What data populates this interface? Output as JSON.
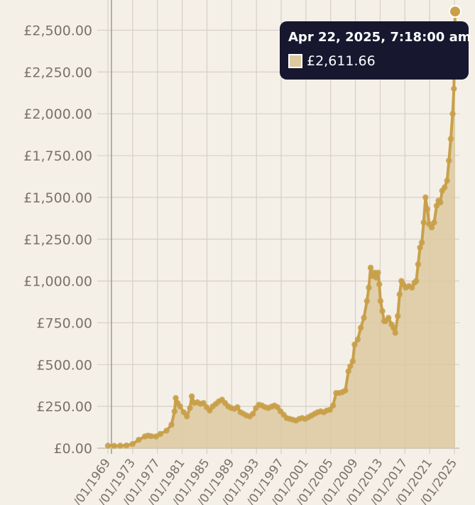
{
  "chart_data": {
    "type": "area",
    "y_tick_labels": [
      "£0.00",
      "£250.00",
      "£500.00",
      "£750.00",
      "£1,000.00",
      "£1,250.00",
      "£1,500.00",
      "£1,750.00",
      "£2,000.00",
      "£2,250.00",
      "£2,500.00"
    ],
    "ylim": [
      0,
      2611.66
    ],
    "x_tick_labels": [
      "/01/1969",
      "/01/1973",
      "/01/1977",
      "/01/1981",
      "/01/1985",
      "/01/1989",
      "/01/1993",
      "/01/1997",
      "/01/2001",
      "/01/2005",
      "/01/2009",
      "/01/2013",
      "/01/2017",
      "/01/2021",
      "/01/2025"
    ],
    "xlim": [
      1969,
      2025.3
    ],
    "grid": true,
    "colors": {
      "line": "#c9a04a",
      "fill": "#dcc99f",
      "tooltip_bg": "#171730",
      "swatch": "#dcc99f"
    },
    "series": [
      {
        "points": [
          [
            1969.0,
            15
          ],
          [
            1970.0,
            14
          ],
          [
            1971.0,
            15
          ],
          [
            1972.0,
            16
          ],
          [
            1973.0,
            25
          ],
          [
            1974.0,
            50
          ],
          [
            1975.0,
            70
          ],
          [
            1975.5,
            75
          ],
          [
            1976.0,
            72
          ],
          [
            1976.8,
            70
          ],
          [
            1977.5,
            85
          ],
          [
            1978.5,
            105
          ],
          [
            1979.3,
            140
          ],
          [
            1979.8,
            220
          ],
          [
            1980.0,
            300
          ],
          [
            1980.3,
            270
          ],
          [
            1980.7,
            250
          ],
          [
            1981.3,
            215
          ],
          [
            1981.8,
            190
          ],
          [
            1982.3,
            240
          ],
          [
            1982.6,
            310
          ],
          [
            1983.0,
            270
          ],
          [
            1983.5,
            275
          ],
          [
            1984.0,
            265
          ],
          [
            1984.5,
            270
          ],
          [
            1985.0,
            245
          ],
          [
            1985.5,
            225
          ],
          [
            1986.0,
            250
          ],
          [
            1986.5,
            265
          ],
          [
            1987.0,
            280
          ],
          [
            1987.5,
            290
          ],
          [
            1988.0,
            270
          ],
          [
            1988.5,
            250
          ],
          [
            1989.0,
            240
          ],
          [
            1989.5,
            235
          ],
          [
            1990.0,
            245
          ],
          [
            1990.5,
            215
          ],
          [
            1991.0,
            205
          ],
          [
            1991.5,
            195
          ],
          [
            1992.0,
            190
          ],
          [
            1992.5,
            205
          ],
          [
            1993.0,
            240
          ],
          [
            1993.5,
            260
          ],
          [
            1994.0,
            255
          ],
          [
            1994.5,
            245
          ],
          [
            1995.0,
            240
          ],
          [
            1995.5,
            248
          ],
          [
            1996.0,
            255
          ],
          [
            1996.5,
            245
          ],
          [
            1997.0,
            220
          ],
          [
            1997.5,
            200
          ],
          [
            1998.0,
            180
          ],
          [
            1998.5,
            175
          ],
          [
            1999.0,
            170
          ],
          [
            1999.5,
            165
          ],
          [
            2000.0,
            175
          ],
          [
            2000.5,
            180
          ],
          [
            2001.0,
            175
          ],
          [
            2001.5,
            185
          ],
          [
            2002.0,
            195
          ],
          [
            2002.5,
            205
          ],
          [
            2003.0,
            215
          ],
          [
            2003.5,
            220
          ],
          [
            2004.0,
            215
          ],
          [
            2004.5,
            225
          ],
          [
            2005.0,
            230
          ],
          [
            2005.5,
            255
          ],
          [
            2006.0,
            330
          ],
          [
            2006.5,
            330
          ],
          [
            2007.0,
            335
          ],
          [
            2007.5,
            345
          ],
          [
            2008.0,
            460
          ],
          [
            2008.3,
            490
          ],
          [
            2008.7,
            520
          ],
          [
            2009.0,
            620
          ],
          [
            2009.5,
            650
          ],
          [
            2010.0,
            720
          ],
          [
            2010.5,
            780
          ],
          [
            2011.0,
            880
          ],
          [
            2011.3,
            960
          ],
          [
            2011.6,
            1080
          ],
          [
            2011.9,
            1030
          ],
          [
            2012.2,
            1050
          ],
          [
            2012.5,
            1020
          ],
          [
            2012.8,
            1050
          ],
          [
            2013.0,
            980
          ],
          [
            2013.2,
            880
          ],
          [
            2013.5,
            820
          ],
          [
            2013.8,
            760
          ],
          [
            2014.0,
            760
          ],
          [
            2014.5,
            780
          ],
          [
            2015.0,
            740
          ],
          [
            2015.3,
            720
          ],
          [
            2015.6,
            690
          ],
          [
            2016.0,
            790
          ],
          [
            2016.3,
            920
          ],
          [
            2016.6,
            1000
          ],
          [
            2016.9,
            980
          ],
          [
            2017.3,
            960
          ],
          [
            2017.8,
            970
          ],
          [
            2018.3,
            960
          ],
          [
            2018.7,
            990
          ],
          [
            2019.0,
            1000
          ],
          [
            2019.3,
            1100
          ],
          [
            2019.6,
            1200
          ],
          [
            2019.9,
            1230
          ],
          [
            2020.2,
            1350
          ],
          [
            2020.5,
            1500
          ],
          [
            2020.8,
            1430
          ],
          [
            2021.1,
            1340
          ],
          [
            2021.5,
            1320
          ],
          [
            2021.9,
            1350
          ],
          [
            2022.3,
            1450
          ],
          [
            2022.6,
            1480
          ],
          [
            2022.9,
            1470
          ],
          [
            2023.2,
            1540
          ],
          [
            2023.6,
            1560
          ],
          [
            2024.0,
            1600
          ],
          [
            2024.3,
            1720
          ],
          [
            2024.6,
            1850
          ],
          [
            2024.9,
            2000
          ],
          [
            2025.1,
            2150
          ],
          [
            2025.3,
            2611.66
          ]
        ]
      }
    ],
    "tooltip": {
      "date": "Apr 22, 2025, 7:18:00 am",
      "value": "£2,611.66"
    }
  }
}
